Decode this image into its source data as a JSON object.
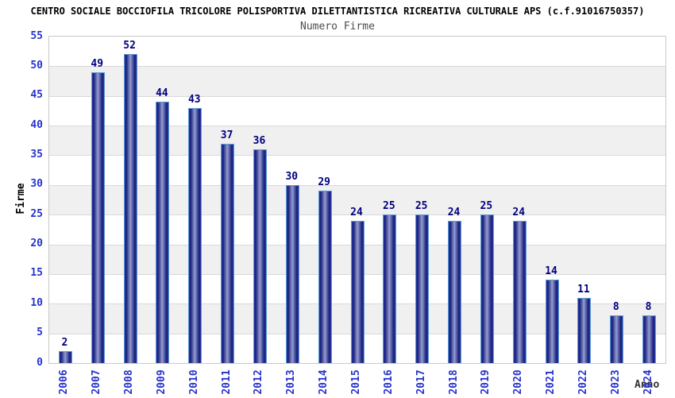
{
  "chart_data": {
    "type": "bar",
    "title": "CENTRO SOCIALE BOCCIOFILA TRICOLORE POLISPORTIVA DILETTANTISTICA RICREATIVA CULTURALE APS (c.f.91016750357)",
    "subtitle": "Numero Firme",
    "xlabel": "Anno",
    "ylabel": "Firme",
    "categories": [
      "2006",
      "2007",
      "2008",
      "2009",
      "2010",
      "2011",
      "2012",
      "2013",
      "2014",
      "2015",
      "2016",
      "2017",
      "2018",
      "2019",
      "2020",
      "2021",
      "2022",
      "2023",
      "2024"
    ],
    "values": [
      2,
      49,
      52,
      44,
      43,
      37,
      36,
      30,
      29,
      24,
      25,
      25,
      24,
      25,
      24,
      14,
      11,
      8,
      8
    ],
    "ylim": [
      0,
      55
    ],
    "ytick_step": 5,
    "yticks": [
      0,
      5,
      10,
      15,
      20,
      25,
      30,
      35,
      40,
      45,
      50,
      55
    ],
    "grid": true,
    "legend_position": "none",
    "colors": {
      "title": "#000000",
      "subtitle": "#4d4d4d",
      "axis_tick": "#2633cc",
      "value_label": "#000080",
      "axis_title": "#333333",
      "bar_dark": "#181d78",
      "bar_mid": "#2b3aa8",
      "bar_light": "#939cd0",
      "bar_border": "#5b9bd5",
      "band_gray": "#f0f0f0",
      "band_white": "#ffffff",
      "gridline": "#d9d9d9",
      "plot_border": "#c9c9c9"
    }
  }
}
